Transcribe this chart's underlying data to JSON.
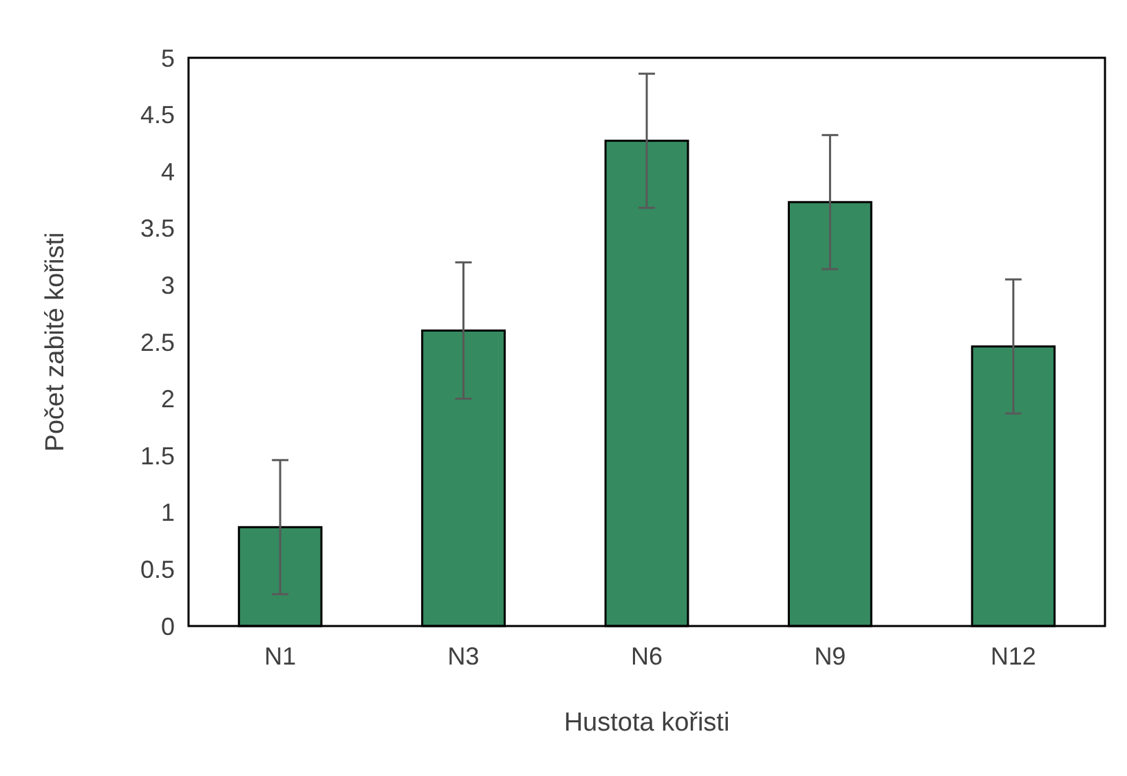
{
  "chart_data": {
    "type": "bar",
    "xlabel": "Hustota kořisti",
    "ylabel": "Počet zabité kořisti",
    "categories": [
      "N1",
      "N3",
      "N6",
      "N9",
      "N12"
    ],
    "values": [
      0.87,
      2.6,
      4.27,
      3.73,
      2.46
    ],
    "errors": [
      0.59,
      0.6,
      0.59,
      0.59,
      0.59
    ],
    "color": "#358a60",
    "ylim": [
      0,
      5
    ],
    "yticks": [
      0,
      0.5,
      1,
      1.5,
      2,
      2.5,
      3,
      3.5,
      4,
      4.5,
      5
    ],
    "grid": false
  }
}
